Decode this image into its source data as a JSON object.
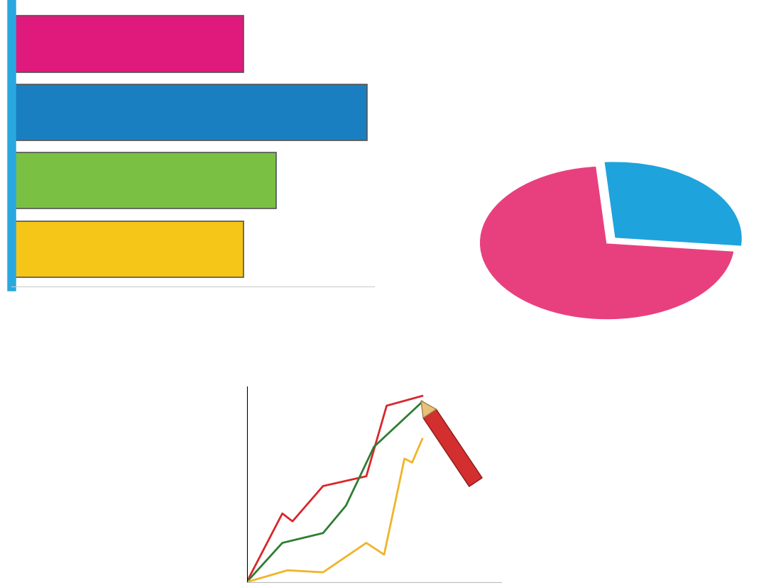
{
  "chart_data": [
    {
      "type": "bar",
      "orientation": "horizontal",
      "categories": [
        null,
        null,
        null,
        null
      ],
      "values": [
        64,
        98,
        73,
        64
      ],
      "colors": [
        "#e0197d",
        "#1a7fc1",
        "#7ac143",
        "#f5c518"
      ],
      "xlim": [
        0,
        100
      ],
      "tick_labels": false,
      "grid": false
    },
    {
      "type": "pie",
      "values": [
        72,
        28
      ],
      "colors": [
        "#e8407f",
        "#1fa3dc"
      ],
      "tick_labels": false
    },
    {
      "type": "line",
      "xlim": [
        0,
        100
      ],
      "ylim": [
        0,
        100
      ],
      "tick_labels": false,
      "grid": false,
      "series": [
        {
          "color": "#d9262b",
          "line_style": "solid",
          "x": [
            0,
            14,
            18,
            30,
            47,
            55,
            69
          ],
          "values": [
            0,
            35,
            31,
            49,
            54,
            90,
            95
          ]
        },
        {
          "color": "#2e7d32",
          "line_style": "solid",
          "x": [
            0,
            14,
            30,
            39,
            50,
            69
          ],
          "values": [
            0,
            20,
            25,
            39,
            69,
            92
          ]
        },
        {
          "color": "#f0b429",
          "line_style": "solid",
          "x": [
            0,
            16,
            30,
            47,
            54,
            62,
            65,
            69
          ],
          "values": [
            0,
            6,
            5,
            20,
            14,
            63,
            61,
            73
          ]
        }
      ]
    }
  ]
}
